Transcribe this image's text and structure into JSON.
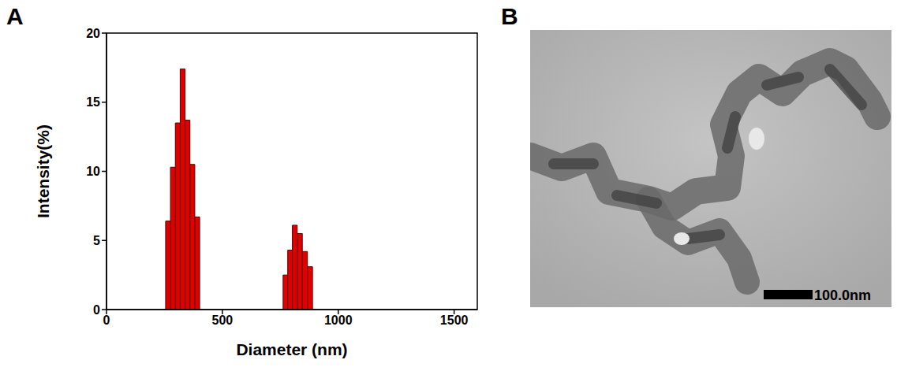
{
  "chart_data": {
    "type": "histogram",
    "panel": "A",
    "xlabel": "Diameter (nm)",
    "ylabel": "Intensity(%)",
    "bins": [
      255,
      276,
      297,
      318,
      339,
      360,
      381,
      402,
      762,
      782,
      802,
      823,
      845,
      867,
      889
    ],
    "counts": [
      6.4,
      10.3,
      13.5,
      17.4,
      13.7,
      10.5,
      6.7,
      0,
      2.5,
      4.3,
      6.1,
      5.5,
      4.2,
      3.1
    ],
    "color": "#e00000",
    "xlim": [
      0,
      1600
    ],
    "xticks": [
      0,
      500,
      1000,
      1500
    ],
    "ylim": [
      0,
      20
    ],
    "yticks": [
      0,
      5,
      10,
      15,
      20
    ],
    "grid": false
  },
  "image": {
    "panel": "B",
    "scale_bar": "100.0nm"
  }
}
